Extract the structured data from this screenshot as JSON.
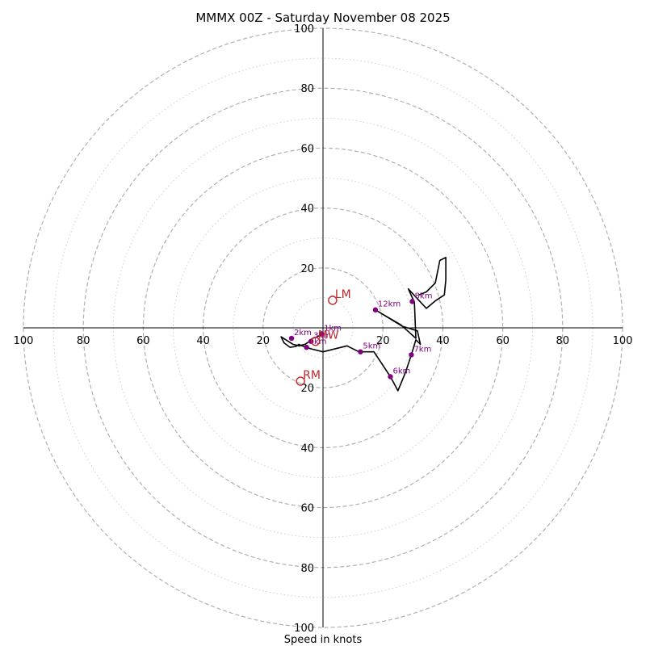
{
  "chart_data": {
    "type": "hodograph",
    "title": "MMMX 00Z - Saturday November 08 2025",
    "xlabel": "Speed in knots",
    "range": [
      -100,
      100
    ],
    "ring_values": [
      20,
      40,
      60,
      80,
      100
    ],
    "minor_ring_values": [
      10,
      30,
      50,
      70,
      90
    ],
    "axis_ticks_x": [
      {
        "value": -100,
        "label": "100"
      },
      {
        "value": -80,
        "label": "80"
      },
      {
        "value": -60,
        "label": "60"
      },
      {
        "value": -40,
        "label": "40"
      },
      {
        "value": -20,
        "label": "20"
      },
      {
        "value": 20,
        "label": "20"
      },
      {
        "value": 40,
        "label": "40"
      },
      {
        "value": 60,
        "label": "60"
      },
      {
        "value": 80,
        "label": "80"
      },
      {
        "value": 100,
        "label": "100"
      }
    ],
    "axis_ticks_y": [
      {
        "value": 100,
        "label": "100"
      },
      {
        "value": 80,
        "label": "80"
      },
      {
        "value": 60,
        "label": "60"
      },
      {
        "value": 40,
        "label": "40"
      },
      {
        "value": 20,
        "label": "20"
      },
      {
        "value": -20,
        "label": "20"
      },
      {
        "value": -40,
        "label": "40"
      },
      {
        "value": -60,
        "label": "60"
      },
      {
        "value": -80,
        "label": "80"
      },
      {
        "value": -100,
        "label": "100"
      }
    ],
    "trace": [
      [
        -0.5,
        -2
      ],
      [
        -1,
        -2.5
      ],
      [
        -2,
        -3
      ],
      [
        -3.5,
        -3.5
      ],
      [
        -4.5,
        -4.5
      ],
      [
        -6,
        -5.5
      ],
      [
        -8,
        -6
      ],
      [
        -10,
        -5.5
      ],
      [
        -14,
        -3
      ],
      [
        -13,
        -5
      ],
      [
        -11,
        -6.5
      ],
      [
        -9,
        -6.2
      ],
      [
        -8,
        -5.5
      ],
      [
        -7,
        -6
      ],
      [
        -4,
        -7
      ],
      [
        0,
        -8
      ],
      [
        8,
        -6
      ],
      [
        12,
        -8
      ],
      [
        17,
        -8
      ],
      [
        22.5,
        -16.3
      ],
      [
        25,
        -21
      ],
      [
        27.5,
        -15
      ],
      [
        29.5,
        -9
      ],
      [
        31,
        -4
      ],
      [
        32.5,
        -5.5
      ],
      [
        31.5,
        -1
      ],
      [
        26.5,
        0.5
      ],
      [
        17.5,
        6
      ],
      [
        20,
        4.5
      ],
      [
        26,
        1
      ],
      [
        31,
        -3.5
      ],
      [
        30.5,
        8.5
      ],
      [
        28.5,
        13
      ],
      [
        34.5,
        6.5
      ],
      [
        37.5,
        9
      ],
      [
        40.5,
        11
      ],
      [
        41,
        16
      ],
      [
        41,
        23.5
      ],
      [
        39,
        22.5
      ],
      [
        37.5,
        15
      ],
      [
        34.5,
        12
      ],
      [
        32,
        11
      ]
    ],
    "height_markers": [
      {
        "label": "1km",
        "u": -0.5,
        "v": -2
      },
      {
        "label": "2km",
        "u": -10.5,
        "v": -3.5
      },
      {
        "label": "3km",
        "u": -4,
        "v": -4.5
      },
      {
        "label": "4km",
        "u": -5.5,
        "v": -6.5
      },
      {
        "label": "5km",
        "u": 12.5,
        "v": -8
      },
      {
        "label": "6km",
        "u": 22.5,
        "v": -16.3
      },
      {
        "label": "7km",
        "u": 29.5,
        "v": -9
      },
      {
        "label": "8km",
        "u": 29.8,
        "v": 8.8
      },
      {
        "label": "12km",
        "u": 17.5,
        "v": 6
      }
    ],
    "storm_motion": [
      {
        "label": "LM",
        "u": 3.2,
        "v": 9.2
      },
      {
        "label": "RM",
        "u": -7.5,
        "v": -17.8
      },
      {
        "label": "MW",
        "u": -2.5,
        "v": -4.5
      }
    ]
  },
  "colors": {
    "trace": "#000000",
    "markers": "#800080",
    "storm_motion": "#c0262a",
    "rings": "#b0b0b0",
    "minor_rings": "#cfcfcf",
    "axes": "#000000"
  }
}
